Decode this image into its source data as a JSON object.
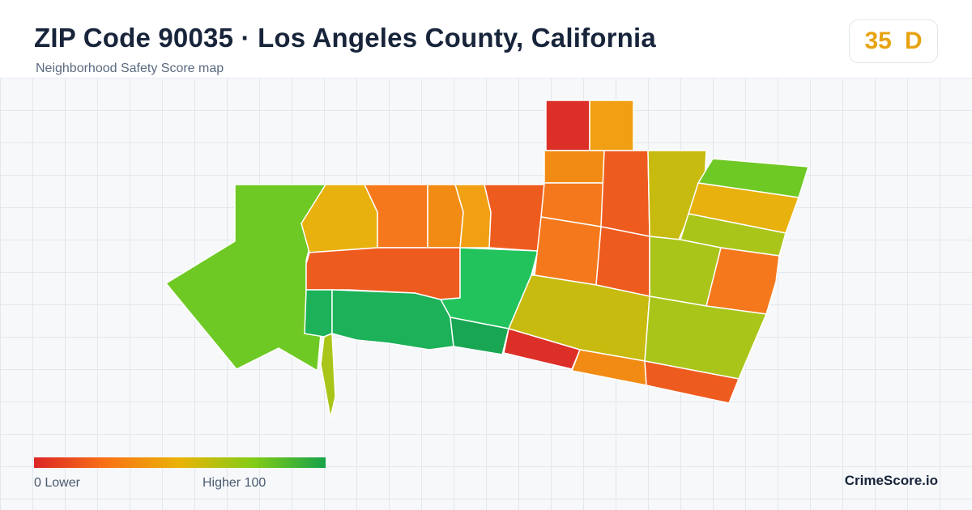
{
  "header": {
    "title": "ZIP Code 90035 · Los Angeles County, California",
    "subtitle": "Neighborhood Safety Score map"
  },
  "score": {
    "value": "35",
    "grade": "D",
    "color": "#e8a313"
  },
  "legend": {
    "low_label": "0  Lower",
    "high_label": "Higher  100",
    "scale_colors": [
      "#dc2626",
      "#f97316",
      "#eab308",
      "#84cc16",
      "#16a34a"
    ]
  },
  "brand": "CrimeScore.io",
  "map": {
    "palette": {
      "red": "#dc2f28",
      "red_orange": "#ee5b1f",
      "orange": "#f5791c",
      "orange_light": "#f28b14",
      "amber": "#f0a012",
      "gold": "#e9b10e",
      "olive": "#c8bb10",
      "yellow_green": "#aac519",
      "lime": "#8cc51e",
      "green_lime": "#6fc924",
      "mid_green": "#22c35c",
      "green": "#1db159",
      "dark_green": "#19a653"
    }
  }
}
